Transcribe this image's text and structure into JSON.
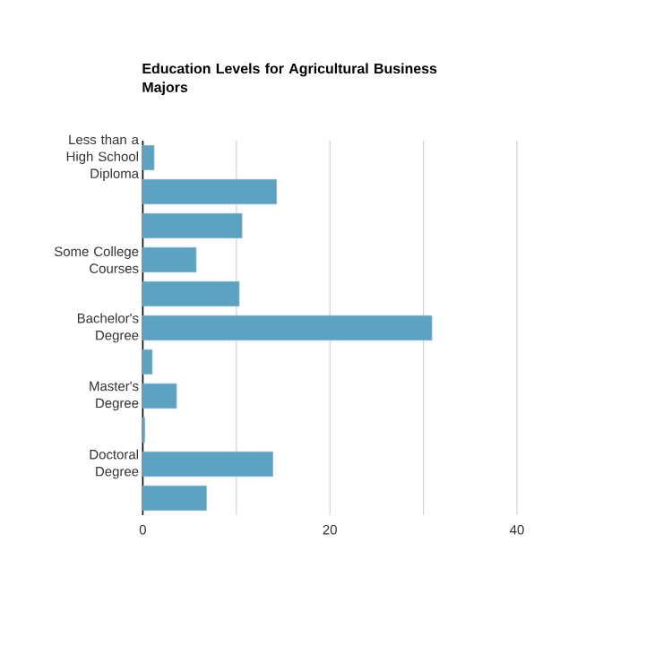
{
  "chart_data": {
    "type": "bar",
    "orientation": "horizontal",
    "title": "Education Levels for Agricultural Business Majors",
    "categories": [
      "Less than a High School Diploma",
      null,
      null,
      "Some College Courses",
      null,
      "Bachelor's Degree",
      null,
      "Master's Degree",
      null,
      "Doctoral Degree",
      null
    ],
    "values": [
      1.2,
      14.3,
      10.6,
      5.7,
      10.3,
      30.9,
      1.0,
      3.6,
      0.2,
      13.9,
      6.8
    ],
    "color": "#5da3c1",
    "xlim": [
      0,
      40
    ],
    "xticks": [
      0,
      {
        "value": 10,
        "label": null
      },
      20,
      {
        "value": 30,
        "label": null
      },
      40
    ],
    "grid": "x"
  }
}
